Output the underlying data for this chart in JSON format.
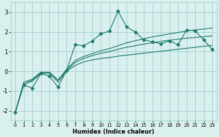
{
  "xlabel": "Humidex (Indice chaleur)",
  "x": [
    0,
    1,
    2,
    3,
    4,
    5,
    6,
    7,
    8,
    9,
    10,
    11,
    12,
    13,
    14,
    15,
    16,
    17,
    18,
    19,
    20,
    21,
    22,
    23
  ],
  "y_main": [
    -2.1,
    -0.7,
    -0.85,
    -0.1,
    -0.25,
    -0.8,
    0.05,
    1.35,
    1.3,
    1.55,
    1.9,
    2.05,
    3.05,
    2.25,
    2.0,
    1.6,
    1.5,
    1.4,
    1.55,
    1.35,
    2.1,
    2.05,
    1.6,
    1.1
  ],
  "y_line_upper": [
    -2.1,
    -0.55,
    -0.4,
    -0.05,
    -0.05,
    -0.45,
    0.1,
    0.55,
    0.75,
    0.9,
    1.05,
    1.15,
    1.3,
    1.45,
    1.55,
    1.65,
    1.75,
    1.82,
    1.9,
    1.97,
    2.05,
    2.1,
    2.15,
    2.2
  ],
  "y_line_mid": [
    -2.1,
    -0.65,
    -0.45,
    -0.05,
    -0.05,
    -0.45,
    0.05,
    0.45,
    0.65,
    0.8,
    0.92,
    1.0,
    1.12,
    1.22,
    1.3,
    1.38,
    1.45,
    1.52,
    1.58,
    1.63,
    1.68,
    1.72,
    1.76,
    1.8
  ],
  "y_line_lower": [
    -2.1,
    -0.65,
    -0.5,
    -0.1,
    -0.1,
    -0.55,
    0.0,
    0.3,
    0.48,
    0.58,
    0.65,
    0.7,
    0.77,
    0.82,
    0.87,
    0.92,
    0.97,
    1.02,
    1.07,
    1.12,
    1.17,
    1.22,
    1.27,
    1.32
  ],
  "color": "#1e7a6a",
  "bg_color": "#daf0ee",
  "grid_color": "#9ecece",
  "ylim": [
    -2.5,
    3.5
  ],
  "xlim": [
    -0.5,
    23.5
  ],
  "yticks": [
    -2,
    -1,
    0,
    1,
    2,
    3
  ],
  "xticks": [
    0,
    1,
    2,
    3,
    4,
    5,
    6,
    7,
    8,
    9,
    10,
    11,
    12,
    13,
    14,
    15,
    16,
    17,
    18,
    19,
    20,
    21,
    22,
    23
  ],
  "xlabel_fontsize": 6.0,
  "ytick_fontsize": 6.0,
  "xtick_fontsize": 5.0
}
